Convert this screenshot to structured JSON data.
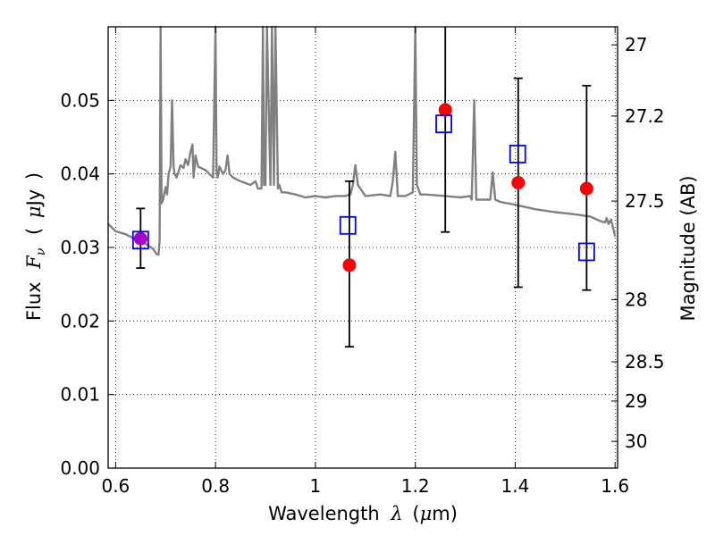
{
  "chart_data": {
    "type": "scatter",
    "xlim": [
      0.585,
      1.605
    ],
    "ylim": [
      0.0,
      0.06
    ],
    "grid": true,
    "x_ticks": [
      0.6,
      0.8,
      1.0,
      1.2,
      1.4,
      1.6
    ],
    "x_tick_labels": [
      "0.6",
      "0.8",
      "1",
      "1.2",
      "1.4",
      "1.6"
    ],
    "y_ticks": [
      0.0,
      0.01,
      0.02,
      0.03,
      0.04,
      0.05
    ],
    "y_tick_labels": [
      "0.00",
      "0.01",
      "0.02",
      "0.03",
      "0.04",
      "0.05"
    ],
    "y2_ticks": [
      27.0,
      27.2,
      27.5,
      28.0,
      28.5,
      29.0,
      30.0
    ],
    "y2_tick_labels": [
      "27",
      "27.2",
      "27.5",
      "28",
      "28.5",
      "29",
      "30"
    ],
    "xlabel": {
      "prefix": "Wavelength",
      "symbol": "λ",
      "open": "(",
      "unit_symbol": "μ",
      "unit": "m",
      "close": ")"
    },
    "ylabel": {
      "prefix": "Flux",
      "symbol": "F",
      "subscript": "ν",
      "open": "(",
      "unit_symbol": "μ",
      "unit": "Jy",
      "close": ")"
    },
    "y2label": "Magnitude (AB)",
    "observed": {
      "color": "#ff0000",
      "x": [
        0.65,
        1.068,
        1.26,
        1.406,
        1.543
      ],
      "y": [
        0.0312,
        0.0276,
        0.0487,
        0.0388,
        0.038
      ],
      "err_low": [
        0.0272,
        0.0165,
        0.0321,
        0.0246,
        0.0242
      ],
      "err_high": [
        0.0353,
        0.039,
        0.06,
        0.053,
        0.052
      ]
    },
    "model_points": {
      "color": "#0000ff",
      "x": [
        0.65,
        1.065,
        1.257,
        1.405,
        1.543
      ],
      "y": [
        0.031,
        0.033,
        0.0468,
        0.0427,
        0.0294
      ]
    },
    "overlap_marker_color": "#aa00cc",
    "spectrum": {
      "color": "#808080",
      "x": [
        0.585,
        0.6,
        0.62,
        0.64,
        0.66,
        0.675,
        0.682,
        0.686,
        0.688,
        0.69,
        0.692,
        0.695,
        0.7,
        0.703,
        0.706,
        0.71,
        0.713,
        0.716,
        0.718,
        0.722,
        0.73,
        0.736,
        0.74,
        0.745,
        0.75,
        0.754,
        0.756,
        0.758,
        0.76,
        0.765,
        0.78,
        0.795,
        0.8,
        0.802,
        0.804,
        0.808,
        0.815,
        0.82,
        0.824,
        0.828,
        0.835,
        0.85,
        0.87,
        0.88,
        0.885,
        0.892,
        0.895,
        0.897,
        0.9,
        0.903,
        0.91,
        0.913,
        0.917,
        0.92,
        0.925,
        0.928,
        0.932,
        0.94,
        0.96,
        0.98,
        1.0,
        1.02,
        1.04,
        1.06,
        1.07,
        1.075,
        1.08,
        1.085,
        1.1,
        1.13,
        1.15,
        1.155,
        1.16,
        1.165,
        1.18,
        1.195,
        1.2,
        1.203,
        1.206,
        1.21,
        1.22,
        1.26,
        1.29,
        1.31,
        1.313,
        1.318,
        1.322,
        1.33,
        1.35,
        1.355,
        1.36,
        1.37,
        1.4,
        1.44,
        1.48,
        1.52,
        1.55,
        1.57,
        1.58,
        1.583,
        1.587,
        1.592,
        1.6
      ],
      "y": [
        0.0332,
        0.0322,
        0.0318,
        0.0311,
        0.0305,
        0.0298,
        0.0291,
        0.029,
        0.031,
        0.06,
        0.036,
        0.0365,
        0.0382,
        0.0372,
        0.04,
        0.041,
        0.05,
        0.041,
        0.04,
        0.0395,
        0.0412,
        0.0408,
        0.042,
        0.0412,
        0.043,
        0.044,
        0.0395,
        0.041,
        0.0425,
        0.041,
        0.0405,
        0.0395,
        0.06,
        0.0405,
        0.0395,
        0.041,
        0.04,
        0.0405,
        0.0425,
        0.04,
        0.0395,
        0.039,
        0.0385,
        0.039,
        0.038,
        0.038,
        0.06,
        0.0385,
        0.0385,
        0.06,
        0.0385,
        0.06,
        0.0385,
        0.06,
        0.038,
        0.0385,
        0.0375,
        0.0375,
        0.0372,
        0.0368,
        0.037,
        0.0368,
        0.037,
        0.037,
        0.0372,
        0.0385,
        0.0412,
        0.0385,
        0.037,
        0.0372,
        0.037,
        0.039,
        0.043,
        0.037,
        0.037,
        0.0375,
        0.06,
        0.0385,
        0.038,
        0.0372,
        0.0372,
        0.037,
        0.0368,
        0.037,
        0.0365,
        0.05,
        0.0365,
        0.0365,
        0.0365,
        0.0402,
        0.0365,
        0.0362,
        0.0358,
        0.0352,
        0.0348,
        0.0345,
        0.0342,
        0.0336,
        0.0334,
        0.034,
        0.0332,
        0.0338,
        0.0315
      ]
    }
  }
}
